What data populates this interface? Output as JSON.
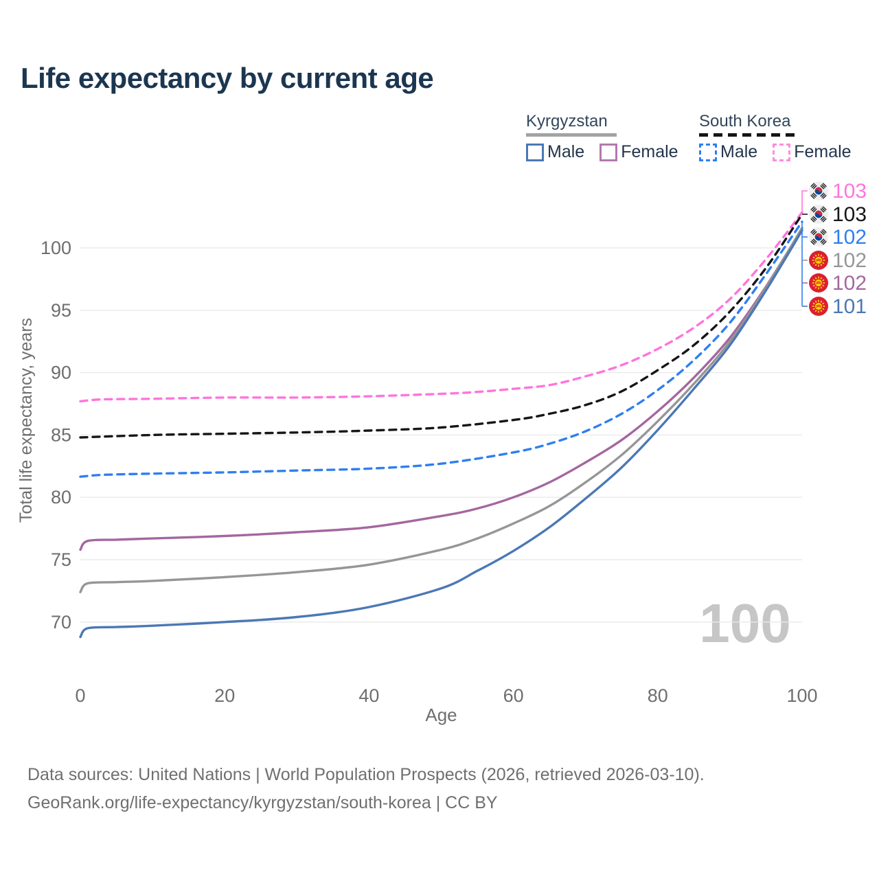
{
  "title": "Life expectancy by current age",
  "legend": {
    "groups": [
      {
        "label": "Kyrgyzstan",
        "underline_style": "solid",
        "underline_color": "#a3a3a3",
        "items": [
          {
            "label": "Male",
            "swatch_color": "#4b78b5",
            "swatch_style": "solid"
          },
          {
            "label": "Female",
            "swatch_color": "#b379ad",
            "swatch_style": "solid"
          }
        ]
      },
      {
        "label": "South Korea",
        "underline_style": "dashed",
        "underline_color": "#151515",
        "items": [
          {
            "label": "Male",
            "swatch_color": "#2e7ff0",
            "swatch_style": "dashed"
          },
          {
            "label": "Female",
            "swatch_color": "#ff8ae0",
            "swatch_style": "dashed"
          }
        ]
      }
    ]
  },
  "chart_data": {
    "type": "line",
    "title": "Life expectancy by current age",
    "xlabel": "Age",
    "ylabel": "Total life expectancy, years",
    "x_ticks": [
      0,
      20,
      40,
      60,
      80,
      100
    ],
    "y_ticks": [
      70,
      75,
      80,
      85,
      90,
      95,
      100
    ],
    "xlim": [
      0,
      100
    ],
    "ylim": [
      68,
      104
    ],
    "grid": "horizontal",
    "watermark": "100",
    "series": [
      {
        "name": "South Korea Female",
        "country": "South Korea",
        "sex": "Female",
        "color": "#ff74dc",
        "dash": true,
        "points": [
          [
            0,
            87.7
          ],
          [
            3,
            87.85
          ],
          [
            10,
            87.9
          ],
          [
            20,
            88.0
          ],
          [
            30,
            88.0
          ],
          [
            40,
            88.1
          ],
          [
            50,
            88.3
          ],
          [
            55,
            88.45
          ],
          [
            60,
            88.7
          ],
          [
            65,
            89.0
          ],
          [
            70,
            89.7
          ],
          [
            75,
            90.6
          ],
          [
            80,
            91.9
          ],
          [
            85,
            93.6
          ],
          [
            90,
            95.9
          ],
          [
            95,
            99.1
          ],
          [
            100,
            102.85
          ]
        ]
      },
      {
        "name": "South Korea Both sexes",
        "country": "South Korea",
        "sex": "Both",
        "color": "#161616",
        "dash": true,
        "points": [
          [
            0,
            84.8
          ],
          [
            10,
            85.0
          ],
          [
            20,
            85.1
          ],
          [
            30,
            85.2
          ],
          [
            40,
            85.35
          ],
          [
            50,
            85.6
          ],
          [
            60,
            86.2
          ],
          [
            65,
            86.7
          ],
          [
            70,
            87.4
          ],
          [
            75,
            88.5
          ],
          [
            80,
            90.2
          ],
          [
            85,
            92.2
          ],
          [
            90,
            94.9
          ],
          [
            95,
            98.4
          ],
          [
            100,
            102.7
          ]
        ]
      },
      {
        "name": "South Korea Male",
        "country": "South Korea",
        "sex": "Male",
        "color": "#2e7ff0",
        "dash": true,
        "points": [
          [
            0,
            81.65
          ],
          [
            3,
            81.8
          ],
          [
            10,
            81.9
          ],
          [
            20,
            82.0
          ],
          [
            30,
            82.15
          ],
          [
            40,
            82.3
          ],
          [
            50,
            82.7
          ],
          [
            60,
            83.6
          ],
          [
            65,
            84.3
          ],
          [
            70,
            85.3
          ],
          [
            75,
            86.7
          ],
          [
            80,
            88.6
          ],
          [
            85,
            91.0
          ],
          [
            90,
            94.0
          ],
          [
            95,
            97.9
          ],
          [
            100,
            102.1
          ]
        ]
      },
      {
        "name": "Kyrgyzstan Female",
        "country": "Kyrgyzstan",
        "sex": "Female",
        "color": "#a4679f",
        "dash": false,
        "points": [
          [
            0,
            75.8
          ],
          [
            1,
            76.5
          ],
          [
            5,
            76.6
          ],
          [
            10,
            76.7
          ],
          [
            20,
            76.9
          ],
          [
            30,
            77.2
          ],
          [
            40,
            77.6
          ],
          [
            50,
            78.5
          ],
          [
            55,
            79.1
          ],
          [
            60,
            80.0
          ],
          [
            65,
            81.2
          ],
          [
            70,
            82.8
          ],
          [
            75,
            84.6
          ],
          [
            80,
            86.9
          ],
          [
            85,
            89.6
          ],
          [
            90,
            92.8
          ],
          [
            95,
            96.9
          ],
          [
            100,
            101.55
          ]
        ]
      },
      {
        "name": "Kyrgyzstan Both sexes",
        "country": "Kyrgyzstan",
        "sex": "Both",
        "color": "#969696",
        "dash": false,
        "points": [
          [
            0,
            72.4
          ],
          [
            1,
            73.1
          ],
          [
            5,
            73.2
          ],
          [
            10,
            73.3
          ],
          [
            20,
            73.6
          ],
          [
            30,
            74.0
          ],
          [
            40,
            74.6
          ],
          [
            50,
            75.8
          ],
          [
            55,
            76.7
          ],
          [
            60,
            77.9
          ],
          [
            65,
            79.3
          ],
          [
            70,
            81.2
          ],
          [
            75,
            83.4
          ],
          [
            80,
            86.1
          ],
          [
            85,
            89.1
          ],
          [
            90,
            92.5
          ],
          [
            95,
            96.8
          ],
          [
            100,
            101.6
          ]
        ]
      },
      {
        "name": "Kyrgyzstan Male",
        "country": "Kyrgyzstan",
        "sex": "Male",
        "color": "#4b78b5",
        "dash": false,
        "points": [
          [
            0,
            68.8
          ],
          [
            1,
            69.5
          ],
          [
            5,
            69.6
          ],
          [
            10,
            69.7
          ],
          [
            20,
            70.0
          ],
          [
            30,
            70.4
          ],
          [
            40,
            71.2
          ],
          [
            50,
            72.7
          ],
          [
            55,
            74.1
          ],
          [
            60,
            75.7
          ],
          [
            65,
            77.6
          ],
          [
            70,
            79.9
          ],
          [
            75,
            82.4
          ],
          [
            80,
            85.4
          ],
          [
            85,
            88.7
          ],
          [
            90,
            92.2
          ],
          [
            95,
            96.6
          ],
          [
            100,
            101.4
          ]
        ]
      }
    ],
    "end_labels": [
      {
        "value": "103",
        "flag": "south-korea",
        "color": "#ff74dc",
        "series": "South Korea Female"
      },
      {
        "value": "103",
        "flag": "south-korea",
        "color": "#161616",
        "series": "South Korea Both sexes"
      },
      {
        "value": "102",
        "flag": "south-korea",
        "color": "#2e7ff0",
        "series": "South Korea Male"
      },
      {
        "value": "102",
        "flag": "kyrgyzstan",
        "color": "#969696",
        "series": "Kyrgyzstan Both sexes"
      },
      {
        "value": "102",
        "flag": "kyrgyzstan",
        "color": "#a4679f",
        "series": "Kyrgyzstan Female"
      },
      {
        "value": "101",
        "flag": "kyrgyzstan",
        "color": "#4b78b5",
        "series": "Kyrgyzstan Male"
      }
    ]
  },
  "footer": {
    "line1": "Data sources: United Nations | World Population Prospects (2026, retrieved 2026-03-10).",
    "line2": "GeoRank.org/life-expectancy/kyrgyzstan/south-korea | CC BY"
  }
}
